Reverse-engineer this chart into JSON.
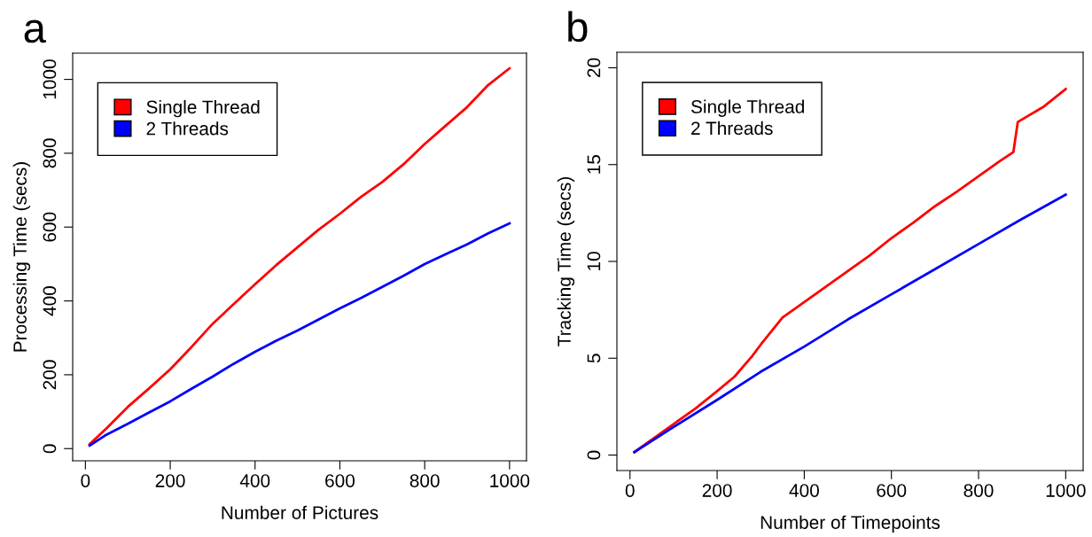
{
  "chart_data": [
    {
      "type": "line",
      "title": "a",
      "xlabel": "Number of Pictures",
      "ylabel": "Processing Time (secs)",
      "xlim": [
        -30,
        1040
      ],
      "ylim": [
        -33,
        1071
      ],
      "xticks": [
        0,
        200,
        400,
        600,
        800,
        1000
      ],
      "yticks": [
        0,
        200,
        400,
        600,
        800,
        1000
      ],
      "grid": false,
      "legend": "top left",
      "marker": "none",
      "line_style": "solid",
      "series": [
        {
          "name": "Single Thread",
          "color": "#ff0000",
          "x": [
            10,
            50,
            100,
            150,
            200,
            250,
            300,
            350,
            400,
            450,
            500,
            550,
            600,
            650,
            700,
            750,
            800,
            850,
            900,
            950,
            1000
          ],
          "values": [
            12,
            55,
            113,
            163,
            215,
            275,
            338,
            392,
            445,
            497,
            545,
            593,
            636,
            682,
            722,
            770,
            825,
            875,
            925,
            985,
            1030
          ]
        },
        {
          "name": "2 Threads",
          "color": "#0000ff",
          "x": [
            10,
            50,
            100,
            150,
            200,
            250,
            300,
            350,
            400,
            450,
            500,
            550,
            600,
            650,
            700,
            750,
            800,
            850,
            900,
            950,
            1000
          ],
          "values": [
            8,
            38,
            67,
            98,
            128,
            162,
            195,
            230,
            262,
            292,
            320,
            350,
            380,
            408,
            438,
            468,
            500,
            527,
            553,
            583,
            610
          ]
        }
      ]
    },
    {
      "type": "line",
      "title": "b",
      "xlabel": "Number of Timepoints",
      "ylabel": "Tracking Time (secs)",
      "xlim": [
        -30,
        1040
      ],
      "ylim": [
        -0.8,
        20.8
      ],
      "xticks": [
        0,
        200,
        400,
        600,
        800,
        1000
      ],
      "yticks": [
        0,
        5,
        10,
        15,
        20
      ],
      "grid": false,
      "legend": "top left",
      "marker": "none",
      "line_style": "solid",
      "series": [
        {
          "name": "Single Thread",
          "color": "#ff0000",
          "x": [
            10,
            50,
            100,
            150,
            200,
            240,
            280,
            300,
            350,
            400,
            450,
            500,
            550,
            600,
            650,
            700,
            750,
            800,
            850,
            880,
            890,
            950,
            1000
          ],
          "values": [
            0.15,
            0.8,
            1.6,
            2.4,
            3.3,
            4.05,
            5.1,
            5.7,
            7.1,
            7.9,
            8.7,
            9.5,
            10.3,
            11.2,
            12.0,
            12.85,
            13.6,
            14.4,
            15.2,
            15.65,
            17.2,
            18.0,
            18.9
          ]
        },
        {
          "name": "2 Threads",
          "color": "#0000ff",
          "x": [
            10,
            100,
            200,
            300,
            400,
            500,
            600,
            700,
            800,
            900,
            1000
          ],
          "values": [
            0.15,
            1.45,
            2.85,
            4.3,
            5.6,
            7.0,
            8.3,
            9.6,
            10.9,
            12.2,
            13.45
          ]
        }
      ]
    }
  ]
}
